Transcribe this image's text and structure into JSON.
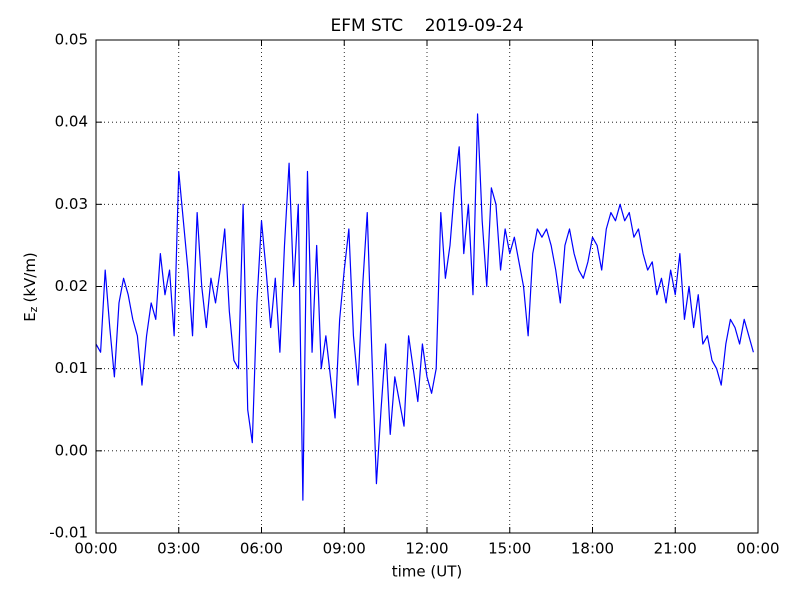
{
  "chart_data": {
    "type": "line",
    "title": "EFM STC    2019-09-24",
    "xlabel": "time (UT)",
    "ylabel": {
      "main": "E",
      "sub": "z",
      "unit": "(kV/m)"
    },
    "color": "#0000ff",
    "grid": true,
    "xlim": [
      0,
      1440
    ],
    "xticks": [
      {
        "value": 0,
        "label": "00:00"
      },
      {
        "value": 180,
        "label": "03:00"
      },
      {
        "value": 360,
        "label": "06:00"
      },
      {
        "value": 540,
        "label": "09:00"
      },
      {
        "value": 720,
        "label": "12:00"
      },
      {
        "value": 900,
        "label": "15:00"
      },
      {
        "value": 1080,
        "label": "18:00"
      },
      {
        "value": 1260,
        "label": "21:00"
      },
      {
        "value": 1440,
        "label": "00:00"
      }
    ],
    "ylim": [
      -0.01,
      0.05
    ],
    "yticks": [
      -0.01,
      {
        "value": 0,
        "label": "0.00"
      },
      0.01,
      0.02,
      0.03,
      0.04,
      0.05
    ],
    "x": [
      0,
      10,
      20,
      30,
      40,
      50,
      60,
      70,
      80,
      90,
      100,
      110,
      120,
      130,
      140,
      150,
      160,
      170,
      180,
      190,
      200,
      210,
      220,
      230,
      240,
      250,
      260,
      270,
      280,
      290,
      300,
      310,
      320,
      330,
      340,
      350,
      360,
      370,
      380,
      390,
      400,
      410,
      420,
      430,
      440,
      450,
      460,
      470,
      480,
      490,
      500,
      510,
      520,
      530,
      540,
      550,
      560,
      570,
      580,
      590,
      600,
      610,
      620,
      630,
      640,
      650,
      660,
      670,
      680,
      690,
      700,
      710,
      720,
      730,
      740,
      750,
      760,
      770,
      780,
      790,
      800,
      810,
      820,
      830,
      840,
      850,
      860,
      870,
      880,
      890,
      900,
      910,
      920,
      930,
      940,
      950,
      960,
      970,
      980,
      990,
      1000,
      1010,
      1020,
      1030,
      1040,
      1050,
      1060,
      1070,
      1080,
      1090,
      1100,
      1110,
      1120,
      1130,
      1140,
      1150,
      1160,
      1170,
      1180,
      1190,
      1200,
      1210,
      1220,
      1230,
      1240,
      1250,
      1260,
      1270,
      1280,
      1290,
      1300,
      1310,
      1320,
      1330,
      1340,
      1350,
      1360,
      1370,
      1380,
      1390,
      1400,
      1410,
      1420,
      1430
    ],
    "values": [
      0.013,
      0.012,
      0.022,
      0.015,
      0.009,
      0.018,
      0.021,
      0.019,
      0.016,
      0.014,
      0.008,
      0.014,
      0.018,
      0.016,
      0.024,
      0.019,
      0.022,
      0.014,
      0.034,
      0.028,
      0.022,
      0.014,
      0.029,
      0.02,
      0.015,
      0.021,
      0.018,
      0.022,
      0.027,
      0.017,
      0.011,
      0.01,
      0.03,
      0.005,
      0.001,
      0.018,
      0.028,
      0.022,
      0.015,
      0.021,
      0.012,
      0.025,
      0.035,
      0.02,
      0.03,
      -0.006,
      0.034,
      0.012,
      0.025,
      0.01,
      0.014,
      0.009,
      0.004,
      0.016,
      0.022,
      0.027,
      0.014,
      0.008,
      0.02,
      0.029,
      0.012,
      -0.004,
      0.005,
      0.013,
      0.002,
      0.009,
      0.006,
      0.003,
      0.014,
      0.01,
      0.006,
      0.013,
      0.009,
      0.007,
      0.01,
      0.029,
      0.021,
      0.025,
      0.032,
      0.037,
      0.024,
      0.03,
      0.019,
      0.041,
      0.028,
      0.02,
      0.032,
      0.03,
      0.022,
      0.027,
      0.024,
      0.026,
      0.023,
      0.02,
      0.014,
      0.024,
      0.027,
      0.026,
      0.027,
      0.025,
      0.022,
      0.018,
      0.025,
      0.027,
      0.024,
      0.022,
      0.021,
      0.023,
      0.026,
      0.025,
      0.022,
      0.027,
      0.029,
      0.028,
      0.03,
      0.028,
      0.029,
      0.026,
      0.027,
      0.024,
      0.022,
      0.023,
      0.019,
      0.021,
      0.018,
      0.022,
      0.019,
      0.024,
      0.016,
      0.02,
      0.015,
      0.019,
      0.013,
      0.014,
      0.011,
      0.01,
      0.008,
      0.013,
      0.016,
      0.015,
      0.013,
      0.016,
      0.014,
      0.012
    ]
  }
}
